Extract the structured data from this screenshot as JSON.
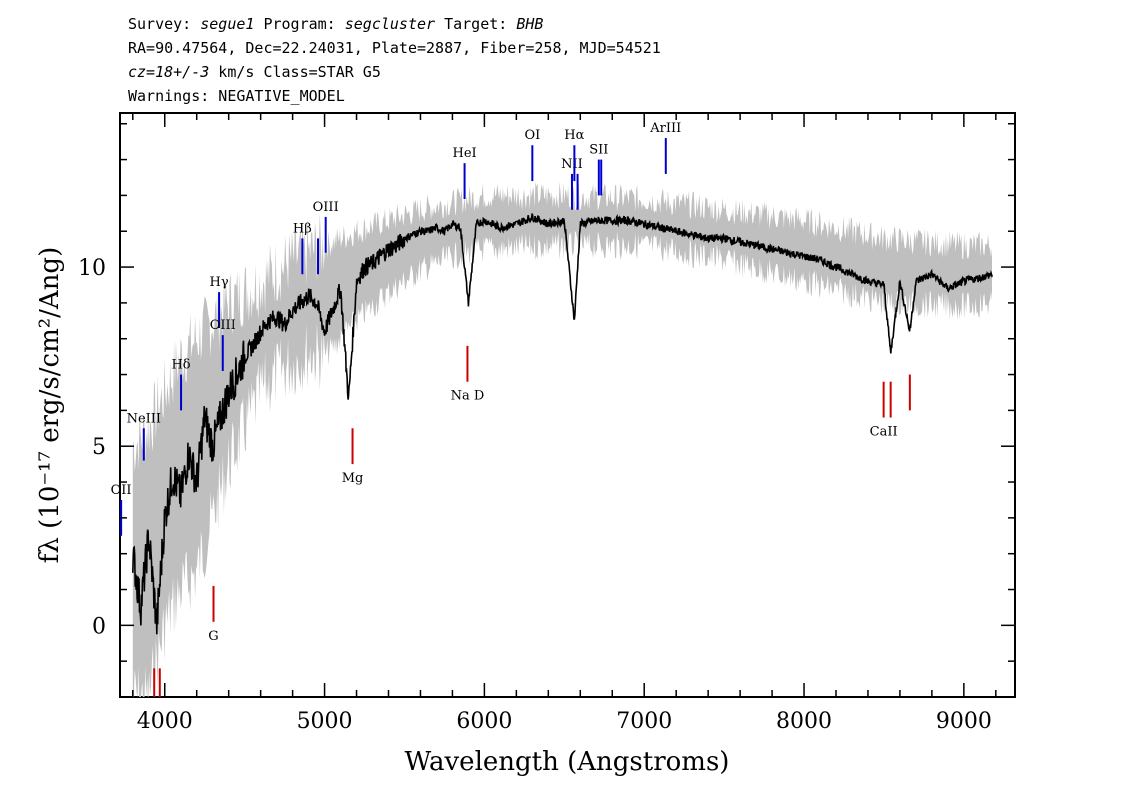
{
  "header": {
    "line1": {
      "survey_label": "Survey: ",
      "survey": "segue1",
      "program_label": " Program: ",
      "program": "segcluster",
      "target_label": " Target: ",
      "target": "BHB"
    },
    "line2": "RA=90.47564, Dec=22.24031, Plate=2887, Fiber=258, MJD=54521",
    "line3": {
      "cz": "cz=18+/-3",
      "rest": " km/s Class=STAR G5"
    },
    "line4": "Warnings: NEGATIVE_MODEL"
  },
  "chart_data": {
    "type": "line",
    "xlabel": "Wavelength (Angstroms)",
    "ylabel": "fλ (10⁻¹⁷ erg/s/cm²/Ang)",
    "xlim": [
      3720,
      9320
    ],
    "ylim": [
      -2,
      14.3
    ],
    "xticks": [
      4000,
      5000,
      6000,
      7000,
      8000,
      9000
    ],
    "yticks": [
      0,
      5,
      10
    ],
    "series": [
      {
        "role": "flux",
        "color": "#000000",
        "x": [
          3800,
          3850,
          3900,
          3950,
          4000,
          4050,
          4100,
          4150,
          4200,
          4250,
          4300,
          4350,
          4400,
          4450,
          4500,
          4550,
          4600,
          4650,
          4700,
          4750,
          4800,
          4850,
          4900,
          4950,
          5000,
          5050,
          5100,
          5150,
          5200,
          5250,
          5300,
          5350,
          5400,
          5450,
          5500,
          5550,
          5600,
          5650,
          5700,
          5750,
          5800,
          5850,
          5900,
          5950,
          6000,
          6100,
          6200,
          6300,
          6400,
          6500,
          6563,
          6600,
          6700,
          6800,
          6900,
          7000,
          7100,
          7200,
          7300,
          7400,
          7500,
          7600,
          7700,
          7800,
          7900,
          8000,
          8100,
          8200,
          8300,
          8400,
          8500,
          8542,
          8600,
          8662,
          8700,
          8800,
          8900,
          9000,
          9100,
          9180
        ],
        "y": [
          2.0,
          0.5,
          2.5,
          0.0,
          3.0,
          4.2,
          3.6,
          4.8,
          4.0,
          5.8,
          5.0,
          5.8,
          6.5,
          7.0,
          7.5,
          7.8,
          8.2,
          8.5,
          8.6,
          8.4,
          8.8,
          9.0,
          9.2,
          9.0,
          8.2,
          8.8,
          9.4,
          6.3,
          9.6,
          10.0,
          10.1,
          10.3,
          10.5,
          10.6,
          10.8,
          10.9,
          11.0,
          11.0,
          11.1,
          11.0,
          11.2,
          11.1,
          9.0,
          11.2,
          11.3,
          11.1,
          11.2,
          11.4,
          11.2,
          11.3,
          8.5,
          11.2,
          11.3,
          11.3,
          11.3,
          11.2,
          11.1,
          11.0,
          10.9,
          10.8,
          10.8,
          10.7,
          10.6,
          10.5,
          10.4,
          10.3,
          10.2,
          10.0,
          9.8,
          9.6,
          9.5,
          7.6,
          9.6,
          8.2,
          9.6,
          9.8,
          9.4,
          9.6,
          9.7,
          9.8
        ]
      },
      {
        "role": "error",
        "color": "#bfbfbf",
        "x": [
          3800,
          3900,
          4000,
          4100,
          4200,
          4300,
          4400,
          4500,
          4600,
          4700,
          4800,
          4900,
          5000,
          5200,
          5400,
          5600,
          5800,
          6000,
          6500,
          7000,
          7500,
          8000,
          8500,
          9000,
          9180
        ],
        "upper": [
          5.0,
          5.5,
          6.5,
          7.5,
          8.0,
          8.5,
          9.0,
          9.3,
          9.6,
          9.9,
          10.2,
          10.4,
          10.6,
          11.0,
          11.3,
          11.6,
          11.8,
          12.0,
          12.0,
          11.9,
          11.6,
          11.3,
          10.8,
          10.6,
          10.6
        ],
        "lower": [
          -2.0,
          -2.0,
          0.0,
          1.0,
          1.5,
          3.0,
          4.5,
          5.5,
          6.5,
          7.0,
          7.3,
          7.6,
          7.5,
          8.5,
          9.3,
          9.9,
          10.3,
          10.5,
          10.6,
          10.6,
          10.2,
          9.6,
          9.0,
          8.9,
          9.0
        ]
      }
    ],
    "emission_lines": [
      {
        "label": "OII",
        "wavelength": 3727,
        "y_top": 3.5,
        "y_bottom": 2.5
      },
      {
        "label": "NeIII",
        "wavelength": 3869,
        "y_top": 5.5,
        "y_bottom": 4.6
      },
      {
        "label": "Hδ",
        "wavelength": 4102,
        "y_top": 7.0,
        "y_bottom": 6.0
      },
      {
        "label": "Hγ",
        "wavelength": 4340,
        "y_top": 9.3,
        "y_bottom": 8.3
      },
      {
        "label": "OIII",
        "wavelength": 4363,
        "y_top": 8.1,
        "y_bottom": 7.1
      },
      {
        "label": "Hβ",
        "wavelength": 4861,
        "y_top": 10.8,
        "y_bottom": 9.8
      },
      {
        "label": "OIII",
        "wavelength": 4959,
        "y_top": 10.8,
        "y_bottom": 9.8,
        "no_label": true
      },
      {
        "label": "OIII",
        "wavelength": 5007,
        "y_top": 11.4,
        "y_bottom": 10.4
      },
      {
        "label": "HeI",
        "wavelength": 5876,
        "y_top": 12.9,
        "y_bottom": 11.9
      },
      {
        "label": "OI",
        "wavelength": 6300,
        "y_top": 13.4,
        "y_bottom": 12.4
      },
      {
        "label": "NII",
        "wavelength": 6548,
        "y_top": 12.6,
        "y_bottom": 11.6
      },
      {
        "label": "Hα",
        "wavelength": 6563,
        "y_top": 13.4,
        "y_bottom": 12.4
      },
      {
        "label": "NII",
        "wavelength": 6583,
        "y_top": 12.6,
        "y_bottom": 11.6,
        "no_label": true
      },
      {
        "label": "SII",
        "wavelength": 6716,
        "y_top": 13.0,
        "y_bottom": 12.0
      },
      {
        "label": "SII",
        "wavelength": 6731,
        "y_top": 13.0,
        "y_bottom": 12.0,
        "no_label": true
      },
      {
        "label": "ArIII",
        "wavelength": 7135,
        "y_top": 13.6,
        "y_bottom": 12.6
      }
    ],
    "absorption_lines": [
      {
        "label": "",
        "wavelength": 3934,
        "y_top": -1.2,
        "y_bottom": -2.0
      },
      {
        "label": "",
        "wavelength": 3969,
        "y_top": -1.2,
        "y_bottom": -2.0
      },
      {
        "label": "G",
        "wavelength": 4305,
        "y_top": 1.1,
        "y_bottom": 0.1
      },
      {
        "label": "Mg",
        "wavelength": 5175,
        "y_top": 5.5,
        "y_bottom": 4.5
      },
      {
        "label": "Na D",
        "wavelength": 5894,
        "y_top": 7.8,
        "y_bottom": 6.8
      },
      {
        "label": "CaII",
        "wavelength": 8498,
        "y_top": 6.8,
        "y_bottom": 5.8
      },
      {
        "label": "CaII",
        "wavelength": 8542,
        "y_top": 6.8,
        "y_bottom": 5.8,
        "no_label": true
      },
      {
        "label": "CaII",
        "wavelength": 8662,
        "y_top": 7.0,
        "y_bottom": 6.0,
        "no_label": true
      }
    ],
    "colors": {
      "emission": "#0000cc",
      "absorption": "#cc0000",
      "flux": "#000000",
      "error": "#bfbfbf"
    }
  }
}
